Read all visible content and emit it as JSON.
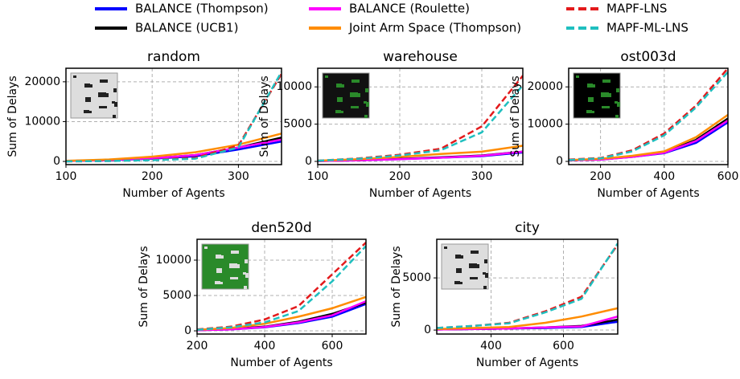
{
  "legend": [
    {
      "name": "BALANCE (Thompson)",
      "color": "#0000ff",
      "dash": false
    },
    {
      "name": "BALANCE (UCB1)",
      "color": "#000000",
      "dash": false
    },
    {
      "name": "BALANCE (Roulette)",
      "color": "#ff00ff",
      "dash": false
    },
    {
      "name": "Joint Arm Space (Thompson)",
      "color": "#ff8c00",
      "dash": false
    },
    {
      "name": "MAPF-LNS",
      "color": "#e31a1c",
      "dash": true
    },
    {
      "name": "MAPF-ML-LNS",
      "color": "#1fbfbf",
      "dash": true
    }
  ],
  "chart_data": [
    {
      "type": "line",
      "title": "random",
      "xlabel": "Number of Agents",
      "ylabel": "Sum of Delays",
      "x": [
        100,
        150,
        200,
        250,
        300,
        350
      ],
      "xlim": [
        100,
        350
      ],
      "xticks": [
        100,
        200,
        300
      ],
      "ylim": [
        -800,
        23400
      ],
      "yticks": [
        0,
        10000,
        20000
      ],
      "grid": true,
      "series": [
        {
          "values": [
            100,
            300,
            700,
            1300,
            3000,
            5000
          ]
        },
        {
          "values": [
            100,
            350,
            800,
            1600,
            3500,
            6000
          ]
        },
        {
          "values": [
            100,
            350,
            800,
            1600,
            3500,
            5500
          ]
        },
        {
          "values": [
            150,
            500,
            1200,
            2300,
            4200,
            7000
          ]
        },
        {
          "values": [
            0,
            100,
            400,
            900,
            4000,
            22000
          ]
        },
        {
          "values": [
            0,
            100,
            300,
            700,
            3500,
            22500
          ]
        }
      ]
    },
    {
      "type": "line",
      "title": "warehouse",
      "xlabel": "Number of Agents",
      "ylabel": "Sum of Delays",
      "x": [
        100,
        150,
        200,
        250,
        300,
        350
      ],
      "xlim": [
        100,
        350
      ],
      "xticks": [
        100,
        200,
        300
      ],
      "ylim": [
        -430,
        12500
      ],
      "yticks": [
        0,
        5000,
        10000
      ],
      "grid": true,
      "series": [
        {
          "values": [
            50,
            150,
            300,
            500,
            700,
            1200
          ]
        },
        {
          "values": [
            50,
            150,
            350,
            550,
            800,
            1300
          ]
        },
        {
          "values": [
            50,
            150,
            300,
            500,
            750,
            1300
          ]
        },
        {
          "values": [
            100,
            300,
            600,
            1000,
            1300,
            2100
          ]
        },
        {
          "values": [
            100,
            400,
            900,
            1700,
            4700,
            11500
          ]
        },
        {
          "values": [
            100,
            350,
            800,
            1500,
            3900,
            10200
          ]
        }
      ]
    },
    {
      "type": "line",
      "title": "ost003d",
      "xlabel": "Number of Agents",
      "ylabel": "Sum of Delays",
      "x": [
        100,
        200,
        300,
        400,
        500,
        600
      ],
      "xlim": [
        100,
        600
      ],
      "xticks": [
        200,
        400,
        600
      ],
      "ylim": [
        -860,
        25000
      ],
      "yticks": [
        0,
        10000,
        20000
      ],
      "grid": true,
      "series": [
        {
          "values": [
            300,
            500,
            1200,
            2200,
            5000,
            10500
          ]
        },
        {
          "values": [
            300,
            550,
            1300,
            2400,
            5800,
            11500
          ]
        },
        {
          "values": [
            300,
            500,
            1200,
            2300,
            5500,
            11000
          ]
        },
        {
          "values": [
            350,
            700,
            1500,
            2700,
            6500,
            12500
          ]
        },
        {
          "values": [
            500,
            900,
            3000,
            7500,
            15000,
            25000
          ]
        },
        {
          "values": [
            400,
            800,
            2700,
            7000,
            14500,
            24000
          ]
        }
      ]
    },
    {
      "type": "line",
      "title": "den520d",
      "xlabel": "Number of Agents",
      "ylabel": "Sum of Delays",
      "x": [
        200,
        300,
        400,
        500,
        600,
        700
      ],
      "xlim": [
        200,
        700
      ],
      "xticks": [
        200,
        400,
        600
      ],
      "ylim": [
        -450,
        12950
      ],
      "yticks": [
        0,
        5000,
        10000
      ],
      "grid": true,
      "series": [
        {
          "values": [
            100,
            200,
            500,
            1100,
            2000,
            3800
          ]
        },
        {
          "values": [
            100,
            250,
            600,
            1300,
            2400,
            4000
          ]
        },
        {
          "values": [
            100,
            200,
            550,
            1200,
            2200,
            4200
          ]
        },
        {
          "values": [
            150,
            400,
            1000,
            2000,
            3200,
            4800
          ]
        },
        {
          "values": [
            200,
            600,
            1600,
            3500,
            8000,
            12500
          ]
        },
        {
          "values": [
            150,
            500,
            1200,
            2800,
            7000,
            12000
          ]
        }
      ]
    },
    {
      "type": "line",
      "title": "city",
      "xlabel": "Number of Agents",
      "ylabel": "Sum of Delays",
      "x": [
        250,
        350,
        450,
        550,
        650,
        750
      ],
      "xlim": [
        250,
        750
      ],
      "xticks": [
        400,
        600
      ],
      "ylim": [
        -380,
        8700
      ],
      "yticks": [
        0,
        5000
      ],
      "grid": true,
      "series": [
        {
          "values": [
            50,
            100,
            150,
            200,
            300,
            800
          ]
        },
        {
          "values": [
            50,
            100,
            150,
            250,
            400,
            1000
          ]
        },
        {
          "values": [
            50,
            100,
            150,
            250,
            350,
            1300
          ]
        },
        {
          "values": [
            100,
            200,
            300,
            700,
            1300,
            2100
          ]
        },
        {
          "values": [
            200,
            400,
            700,
            1800,
            3200,
            8200
          ]
        },
        {
          "values": [
            200,
            400,
            650,
            1700,
            3000,
            8300
          ]
        }
      ]
    }
  ]
}
